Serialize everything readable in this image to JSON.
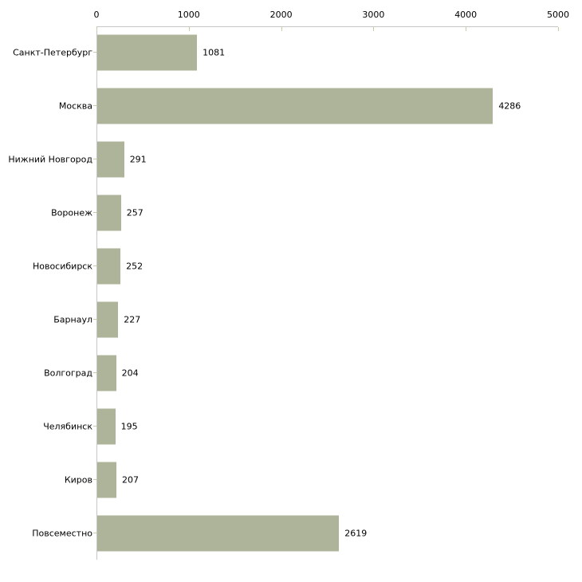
{
  "chart_data": {
    "type": "bar",
    "orientation": "horizontal",
    "title": "",
    "xlabel": "",
    "ylabel": "",
    "categories": [
      "Санкт-Петербург",
      "Москва",
      "Нижний Новгород",
      "Воронеж",
      "Новосибирск",
      "Барнаул",
      "Волгоград",
      "Челябинск",
      "Киров",
      "Повсеместно"
    ],
    "values": [
      1081,
      4286,
      291,
      257,
      252,
      227,
      204,
      195,
      207,
      2619
    ],
    "value_labels": [
      "1081",
      "4286",
      "291",
      "257",
      "252",
      "227",
      "204",
      "195",
      "207",
      "2619"
    ],
    "x_ticks": [
      0,
      1000,
      2000,
      3000,
      4000,
      5000
    ],
    "x_tick_labels": [
      "0",
      "1000",
      "2000",
      "3000",
      "4000",
      "5000"
    ],
    "xlim": [
      0,
      5000
    ],
    "grid": false,
    "legend": false,
    "colors": {
      "bar": "#adb49a",
      "axis_line": "#c6c6c6",
      "tick_mark": "#c9cca3",
      "text": "#000000",
      "background": "#ffffff"
    }
  }
}
